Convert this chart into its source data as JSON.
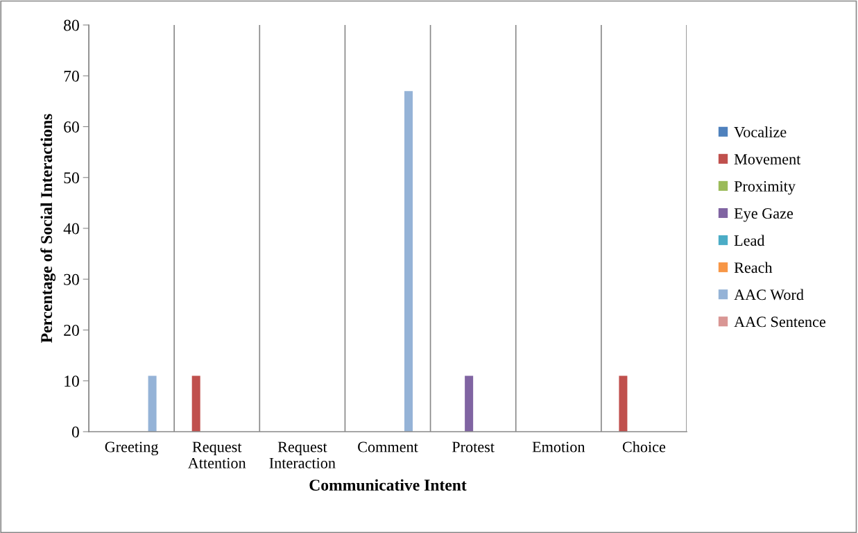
{
  "chart_data": {
    "type": "bar",
    "xlabel": "Communicative Intent",
    "ylabel": "Percentage of Social Interactions",
    "categories": [
      "Greeting",
      "Request\nAttention",
      "Request\nInteraction",
      "Comment",
      "Protest",
      "Emotion",
      "Choice"
    ],
    "series": [
      {
        "name": "Vocalize",
        "color": "#4f81bd",
        "values": [
          0,
          0,
          0,
          0,
          0,
          0,
          0
        ]
      },
      {
        "name": "Movement",
        "color": "#c0504d",
        "values": [
          0,
          11,
          0,
          0,
          0,
          0,
          11
        ]
      },
      {
        "name": "Proximity",
        "color": "#9bbb59",
        "values": [
          0,
          0,
          0,
          0,
          0,
          0,
          0
        ]
      },
      {
        "name": "Eye Gaze",
        "color": "#8064a2",
        "values": [
          0,
          0,
          0,
          0,
          11,
          0,
          0
        ]
      },
      {
        "name": "Lead",
        "color": "#4bacc6",
        "values": [
          0,
          0,
          0,
          0,
          0,
          0,
          0
        ]
      },
      {
        "name": "Reach",
        "color": "#f79646",
        "values": [
          0,
          0,
          0,
          0,
          0,
          0,
          0
        ]
      },
      {
        "name": "AAC Word",
        "color": "#95b3d7",
        "values": [
          11,
          0,
          0,
          67,
          0,
          0,
          0
        ]
      },
      {
        "name": "AAC Sentence",
        "color": "#d99694",
        "values": [
          0,
          0,
          0,
          0,
          0,
          0,
          0
        ]
      }
    ],
    "ylim": [
      0,
      80
    ],
    "yticks": [
      0,
      10,
      20,
      30,
      40,
      50,
      60,
      70,
      80
    ],
    "grid": "x",
    "legend": "right"
  }
}
